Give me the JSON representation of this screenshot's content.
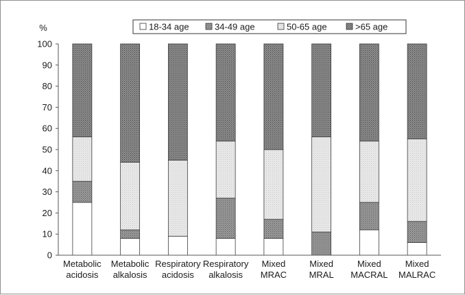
{
  "chart_data": {
    "type": "bar",
    "stacked": true,
    "ylabel": "%",
    "ylim": [
      0,
      100
    ],
    "yticks": [
      0,
      10,
      20,
      30,
      40,
      50,
      60,
      70,
      80,
      90,
      100
    ],
    "grid": false,
    "legend_position": "top",
    "categories": [
      [
        "Metabolic",
        "acidosis"
      ],
      [
        "Metabolic",
        "alkalosis"
      ],
      [
        "Respiratory",
        "acidosis"
      ],
      [
        "Respiratory",
        "alkalosis"
      ],
      [
        "Mixed",
        "MRAC"
      ],
      [
        "Mixed",
        "MRAL"
      ],
      [
        "Mixed",
        "MACRAL"
      ],
      [
        "Mixed",
        "MALRAC"
      ]
    ],
    "series": [
      {
        "name": "18-34 age",
        "color": "#ffffff",
        "pattern": "white",
        "values": [
          25,
          8,
          9,
          8,
          8,
          0,
          12,
          6
        ]
      },
      {
        "name": "34-49 age",
        "color": "#8a8a8a",
        "pattern": "mid-dots",
        "values": [
          10,
          4,
          0,
          19,
          9,
          11,
          13,
          10
        ]
      },
      {
        "name": "50-65 age",
        "color": "#e2e2e2",
        "pattern": "light-dots",
        "values": [
          21,
          32,
          36,
          27,
          33,
          45,
          29,
          39
        ]
      },
      {
        "name": ">65 age",
        "color": "#7a7a7a",
        "pattern": "dark-dots",
        "values": [
          44,
          56,
          55,
          46,
          50,
          44,
          46,
          45
        ]
      }
    ]
  }
}
